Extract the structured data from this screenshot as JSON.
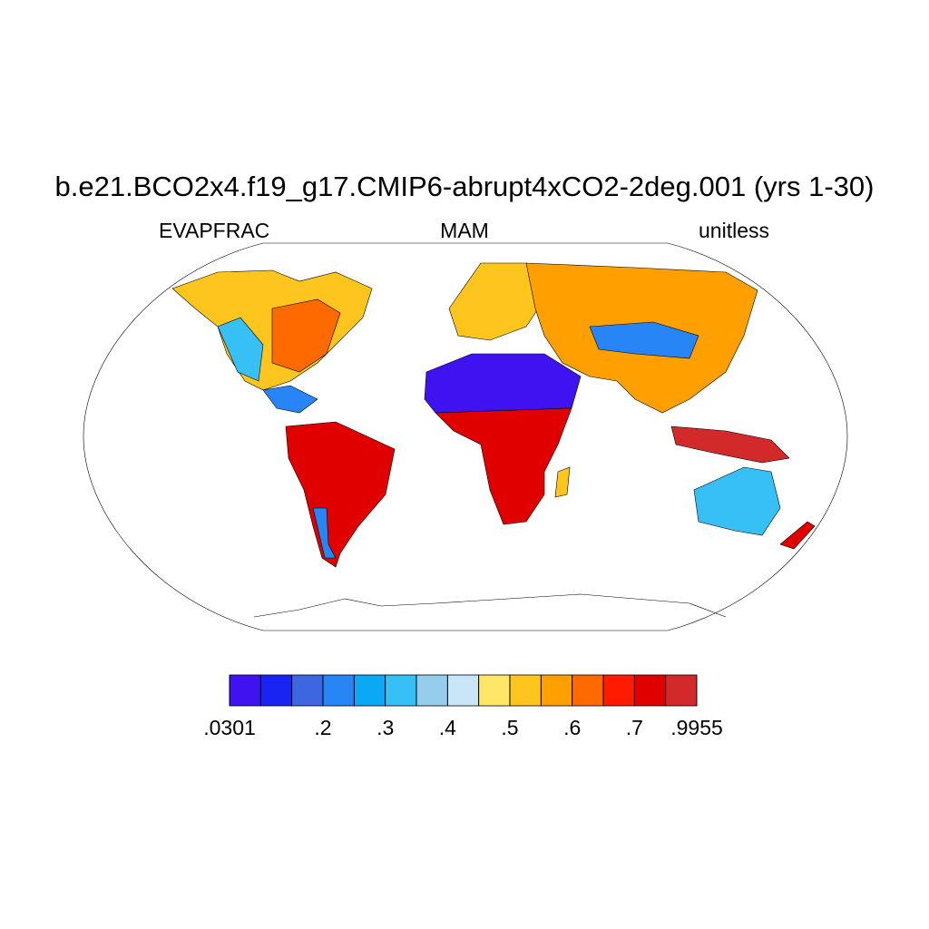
{
  "title": "b.e21.BCO2x4.f19_g17.CMIP6-abrupt4xCO2-2deg.001 (yrs 1-30)",
  "left_subtitle": "EVAPFRAC",
  "center_subtitle": "MAM",
  "right_subtitle": "unitless",
  "colorbar": {
    "colors": [
      "#3f12f0",
      "#1a24f2",
      "#3d67e0",
      "#2885f5",
      "#0aa8f5",
      "#36c0f5",
      "#96cdec",
      "#c8e6f7",
      "#ffe666",
      "#ffc51f",
      "#ff9f00",
      "#ff6a00",
      "#ff1a00",
      "#e00000",
      "#d22a2a"
    ],
    "levels": [
      0.0301,
      0.1,
      0.15,
      0.2,
      0.25,
      0.3,
      0.35,
      0.4,
      0.45,
      0.5,
      0.55,
      0.6,
      0.65,
      0.7,
      0.75,
      0.9955
    ],
    "ticks": [
      {
        "value": 0.0301,
        "label": ".0301"
      },
      {
        "value": 0.2,
        "label": ".2"
      },
      {
        "value": 0.3,
        "label": ".3"
      },
      {
        "value": 0.4,
        "label": ".4"
      },
      {
        "value": 0.5,
        "label": ".5"
      },
      {
        "value": 0.6,
        "label": ".6"
      },
      {
        "value": 0.7,
        "label": ".7"
      },
      {
        "value": 0.9955,
        "label": ".9955"
      }
    ]
  }
}
